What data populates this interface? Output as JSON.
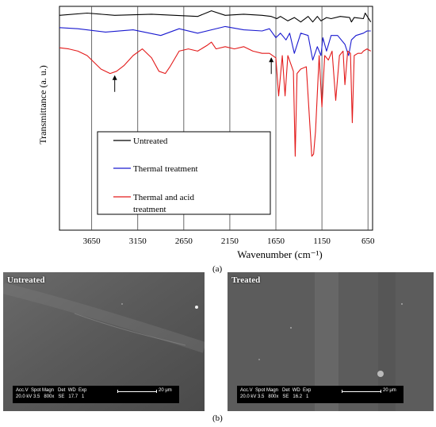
{
  "figure_a": {
    "caption": "(a)",
    "chart_data": {
      "type": "line",
      "xlabel": "Wavenumber  (cm⁻¹)",
      "ylabel": "Transmittance  (a. u.)",
      "xlim": [
        4000,
        600
      ],
      "x_reversed": true,
      "x_ticks": [
        "3650",
        "3150",
        "2650",
        "2150",
        "1650",
        "1150",
        "650"
      ],
      "grid": "vertical",
      "legend_placement": "left-center",
      "series": [
        {
          "name": "Untreated",
          "color": "#000000",
          "x": [
            4000,
            3700,
            3400,
            3000,
            2500,
            2350,
            2200,
            2000,
            1800,
            1700,
            1640,
            1600,
            1520,
            1450,
            1380,
            1300,
            1250,
            1200,
            1160,
            1100,
            1050,
            950,
            850,
            830,
            800,
            700,
            680,
            650,
            620
          ],
          "y": [
            0.96,
            0.97,
            0.96,
            0.965,
            0.955,
            0.98,
            0.96,
            0.965,
            0.96,
            0.955,
            0.945,
            0.955,
            0.935,
            0.95,
            0.93,
            0.955,
            0.93,
            0.955,
            0.935,
            0.95,
            0.945,
            0.955,
            0.95,
            0.93,
            0.95,
            0.945,
            0.97,
            0.95,
            0.93
          ]
        },
        {
          "name": "Thermal treatment",
          "color": "#1a1ad0",
          "x": [
            4000,
            3800,
            3500,
            3200,
            2900,
            2700,
            2500,
            2200,
            2000,
            1800,
            1720,
            1650,
            1600,
            1540,
            1500,
            1450,
            1380,
            1300,
            1250,
            1200,
            1160,
            1140,
            1100,
            1050,
            980,
            900,
            860,
            830,
            780,
            700,
            660,
            620
          ],
          "y": [
            0.905,
            0.9,
            0.885,
            0.895,
            0.87,
            0.9,
            0.88,
            0.91,
            0.895,
            0.89,
            0.9,
            0.86,
            0.88,
            0.85,
            0.88,
            0.79,
            0.88,
            0.87,
            0.76,
            0.82,
            0.78,
            0.86,
            0.8,
            0.87,
            0.87,
            0.83,
            0.78,
            0.85,
            0.87,
            0.88,
            0.89,
            0.89
          ]
        },
        {
          "name": "Thermal and acid treatment",
          "color": "#e31a1a",
          "x": [
            4000,
            3900,
            3800,
            3700,
            3550,
            3450,
            3380,
            3300,
            3200,
            3100,
            3000,
            2920,
            2850,
            2800,
            2700,
            2600,
            2500,
            2400,
            2350,
            2300,
            2200,
            2100,
            2000,
            1900,
            1800,
            1720,
            1650,
            1620,
            1580,
            1550,
            1520,
            1460,
            1440,
            1420,
            1380,
            1320,
            1260,
            1240,
            1220,
            1180,
            1150,
            1120,
            1080,
            1040,
            1000,
            960,
            920,
            900,
            870,
            840,
            820,
            800,
            760,
            720,
            700,
            660,
            620
          ],
          "y": [
            0.815,
            0.81,
            0.8,
            0.78,
            0.72,
            0.7,
            0.71,
            0.735,
            0.78,
            0.81,
            0.77,
            0.71,
            0.7,
            0.73,
            0.8,
            0.81,
            0.8,
            0.825,
            0.84,
            0.81,
            0.82,
            0.81,
            0.82,
            0.8,
            0.79,
            0.79,
            0.77,
            0.6,
            0.78,
            0.6,
            0.78,
            0.71,
            0.33,
            0.7,
            0.72,
            0.73,
            0.33,
            0.34,
            0.44,
            0.78,
            0.55,
            0.78,
            0.76,
            0.8,
            0.58,
            0.78,
            0.8,
            0.65,
            0.8,
            0.79,
            0.48,
            0.78,
            0.79,
            0.79,
            0.8,
            0.81,
            0.8
          ]
        }
      ],
      "annotations": [
        {
          "type": "arrow",
          "direction": "up",
          "x": 3400
        },
        {
          "type": "arrow",
          "direction": "up",
          "x": 1700
        }
      ]
    }
  },
  "figure_b": {
    "caption": "(b)",
    "panels": [
      {
        "label": "Untreated",
        "databar_line1": "Acc.V  Spot Magn   Det  WD  Exp",
        "databar_line2": "20.0 kV 3.5   800x   SE   17.7   1",
        "scale": "20 μm"
      },
      {
        "label": "Treated",
        "databar_line1": "Acc.V  Spot Magn   Det  WD  Exp",
        "databar_line2": "20.0 kV 3.5   800x   SE   16.2   1",
        "scale": "20 μm"
      }
    ]
  }
}
